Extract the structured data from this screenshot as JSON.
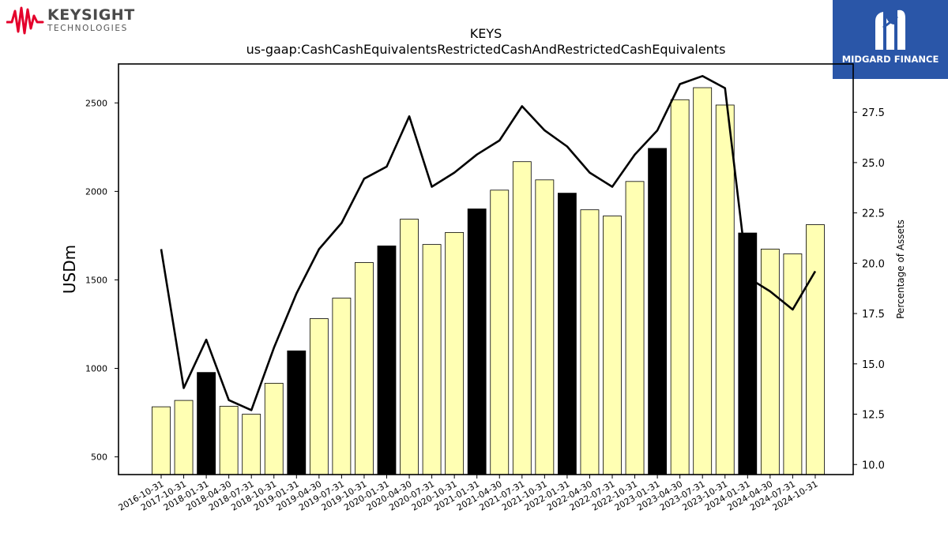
{
  "branding": {
    "left_logo": {
      "name": "KEYSIGHT",
      "tagline": "TECHNOLOGIES",
      "accent_color": "#e4002b"
    },
    "right_logo": {
      "name": "MIDGARD FINANCE",
      "background_color": "#2a56a8"
    }
  },
  "chart_data": {
    "type": "bar",
    "title": "KEYS",
    "subtitle": "us-gaap:CashCashEquivalentsRestrictedCashAndRestrictedCashEquivalents",
    "ylabel": "USDm",
    "y2label": "Percentage of Assets",
    "ylim": [
      400,
      2720
    ],
    "y2lim": [
      9.5,
      29.9
    ],
    "yticks": [
      500,
      1000,
      1500,
      2000,
      2500
    ],
    "y2ticks": [
      "10.0",
      "12.5",
      "15.0",
      "17.5",
      "20.0",
      "22.5",
      "25.0",
      "27.5"
    ],
    "categories": [
      "2016-10-31",
      "2017-10-31",
      "2018-01-31",
      "2018-04-30",
      "2018-07-31",
      "2018-10-31",
      "2019-01-31",
      "2019-04-30",
      "2019-07-31",
      "2019-10-31",
      "2020-01-31",
      "2020-04-30",
      "2020-07-31",
      "2020-10-31",
      "2021-01-31",
      "2021-04-30",
      "2021-07-31",
      "2021-10-31",
      "2022-01-31",
      "2022-04-30",
      "2022-07-31",
      "2022-10-31",
      "2023-01-31",
      "2023-04-30",
      "2023-07-31",
      "2023-10-31",
      "2024-01-31",
      "2024-04-30",
      "2024-07-31",
      "2024-10-31"
    ],
    "series": [
      {
        "type": "bar",
        "values": [
          783,
          819,
          977,
          786,
          741,
          916,
          1099,
          1281,
          1397,
          1598,
          1692,
          1843,
          1700,
          1768,
          1901,
          2007,
          2168,
          2065,
          1990,
          1896,
          1861,
          2056,
          2243,
          2518,
          2586,
          2488,
          1765,
          1674,
          1647,
          1812
        ],
        "highlight": [
          false,
          false,
          true,
          false,
          false,
          false,
          true,
          false,
          false,
          false,
          true,
          false,
          false,
          false,
          true,
          false,
          false,
          false,
          true,
          false,
          false,
          false,
          true,
          false,
          false,
          false,
          true,
          false,
          false,
          false
        ]
      },
      {
        "type": "line",
        "axis": "right",
        "values": [
          20.7,
          13.8,
          16.2,
          13.2,
          12.7,
          15.8,
          18.5,
          20.7,
          22.0,
          24.2,
          24.8,
          27.3,
          23.8,
          24.5,
          25.4,
          26.1,
          27.8,
          26.6,
          25.8,
          24.5,
          23.8,
          25.4,
          26.6,
          28.9,
          29.3,
          28.7,
          19.3,
          18.6,
          17.7,
          19.6
        ]
      }
    ],
    "colors": {
      "bar": "#ffffb3",
      "bar_highlight": "#000000",
      "line": "#000000"
    },
    "grid": false,
    "legend": "none"
  }
}
